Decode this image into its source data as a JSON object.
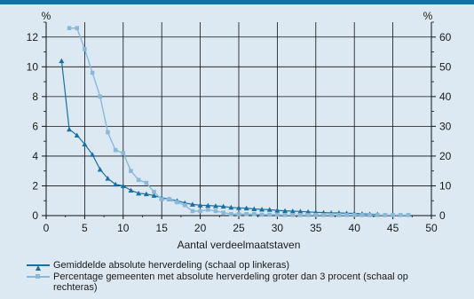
{
  "chart_data": {
    "type": "line",
    "xlabel": "Aantal verdeelmaatstaven",
    "y_left_unit": "%",
    "y_right_unit": "%",
    "xlim": [
      0,
      50
    ],
    "ylim_left": [
      0,
      13
    ],
    "ylim_right": [
      0,
      65
    ],
    "x_ticks": [
      0,
      5,
      10,
      15,
      20,
      25,
      30,
      35,
      40,
      45,
      50
    ],
    "y_left_ticks": [
      0,
      2,
      4,
      6,
      8,
      10,
      12
    ],
    "y_right_ticks": [
      0,
      10,
      20,
      30,
      40,
      50,
      60
    ],
    "grid": true,
    "legend_position": "bottom",
    "series": [
      {
        "name": "Gemiddelde absolute herverdeling (schaal op linkeras)",
        "axis": "left",
        "color": "#1a6fa3",
        "marker": "triangle",
        "x": [
          2,
          3,
          4,
          5,
          6,
          7,
          8,
          9,
          10,
          11,
          12,
          13,
          14,
          15,
          16,
          17,
          18,
          19,
          20,
          21,
          22,
          23,
          24,
          25,
          26,
          27,
          28,
          29,
          30,
          31,
          32,
          33,
          34,
          35,
          36,
          37,
          38,
          39,
          40,
          41,
          42,
          43
        ],
        "values": [
          10.4,
          5.8,
          5.4,
          4.8,
          4.1,
          3.1,
          2.5,
          2.1,
          2.0,
          1.7,
          1.5,
          1.45,
          1.35,
          1.2,
          1.1,
          1.0,
          0.85,
          0.75,
          0.7,
          0.68,
          0.65,
          0.62,
          0.55,
          0.52,
          0.5,
          0.45,
          0.42,
          0.4,
          0.35,
          0.32,
          0.3,
          0.28,
          0.25,
          0.22,
          0.2,
          0.18,
          0.18,
          0.16,
          0.15,
          0.12,
          0.1,
          0.08
        ]
      },
      {
        "name": "Percentage gemeenten met absolute herverdeling groter dan 3 procent (schaal op rechteras)",
        "axis": "right",
        "color": "#8ab9d8",
        "marker": "square",
        "x": [
          3,
          4,
          5,
          6,
          7,
          8,
          9,
          10,
          11,
          12,
          13,
          14,
          15,
          16,
          17,
          18,
          19,
          20,
          21,
          22,
          23,
          24,
          25,
          26,
          27,
          28,
          29,
          30,
          31,
          32,
          33,
          34,
          35,
          36,
          37,
          38,
          39,
          40,
          41,
          42,
          43,
          44,
          45,
          46,
          47
        ],
        "values": [
          63,
          63,
          56,
          48,
          40,
          28,
          22,
          21,
          15,
          12,
          11,
          8,
          5.5,
          5.5,
          4.5,
          3.5,
          1.5,
          1.5,
          2,
          1.5,
          1,
          0.5,
          0.5,
          0.5,
          0.5,
          0.3,
          0.3,
          0.3,
          0.2,
          0.2,
          0.2,
          0.2,
          0.2,
          0.2,
          0.2,
          0.2,
          0.2,
          0.2,
          0.2,
          0.2,
          0.2,
          0.2,
          0.2,
          0.2,
          0.2
        ]
      }
    ]
  }
}
